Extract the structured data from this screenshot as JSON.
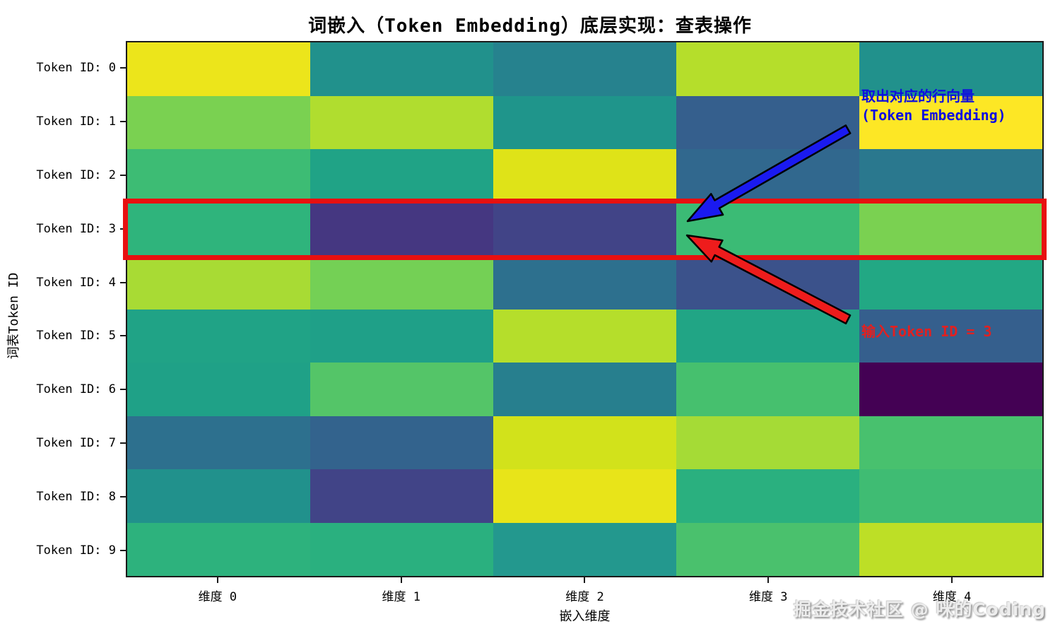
{
  "title": "词嵌入（Token Embedding）底层实现：查表操作",
  "watermark": "掘金技术社区 @ 咪的Coding",
  "annotations": {
    "blue_line1": "取出对应的行向量",
    "blue_line2": "(Token Embedding)",
    "blue_color": "#0d0de0",
    "red_text": "输入Token ID = 3",
    "red_color": "#e22020",
    "arrow_blue_color": "#1a1af0",
    "arrow_red_color": "#ee1c1c",
    "highlight_color": "#e81010"
  },
  "chart_data": {
    "type": "heatmap",
    "title": "词嵌入（Token Embedding）底层实现：查表操作",
    "xlabel": "嵌入维度",
    "ylabel": "词表Token ID",
    "colormap": "viridis",
    "legend": "none",
    "grid": false,
    "highlighted_row": 3,
    "col_labels": [
      "维度 0",
      "维度 1",
      "维度 2",
      "维度 3",
      "维度 4"
    ],
    "row_labels": [
      "Token ID: 0",
      "Token ID: 1",
      "Token ID: 2",
      "Token ID: 3",
      "Token ID: 4",
      "Token ID: 5",
      "Token ID: 6",
      "Token ID: 7",
      "Token ID: 8",
      "Token ID: 9"
    ],
    "cell_colors": [
      [
        "#ece51b",
        "#21918c",
        "#26828e",
        "#b5de2b",
        "#21918c"
      ],
      [
        "#7ad151",
        "#b0dd2f",
        "#1f958b",
        "#355f8d",
        "#fde725"
      ],
      [
        "#3dbc74",
        "#20a386",
        "#dfe318",
        "#31688e",
        "#2a788e"
      ],
      [
        "#2fb47c",
        "#453781",
        "#414487",
        "#3bbb75",
        "#7ad151"
      ],
      [
        "#a8db34",
        "#74d055",
        "#2d708e",
        "#3b528b",
        "#22a884"
      ],
      [
        "#20a386",
        "#1fa088",
        "#b5de2b",
        "#21a585",
        "#355f8d"
      ],
      [
        "#1fa187",
        "#54c568",
        "#277f8e",
        "#46c06e",
        "#440154"
      ],
      [
        "#2d708e",
        "#33638d",
        "#d2e21b",
        "#a5db36",
        "#48c16e"
      ],
      [
        "#21918c",
        "#414487",
        "#e8e419",
        "#2ab07f",
        "#3fbc73"
      ],
      [
        "#2db27d",
        "#2ab07f",
        "#23988e",
        "#4ac16d",
        "#bddf26"
      ]
    ],
    "values_norm_estimated": [
      [
        0.93,
        0.5,
        0.45,
        0.81,
        0.5
      ],
      [
        0.77,
        0.8,
        0.52,
        0.28,
        1.0
      ],
      [
        0.67,
        0.57,
        0.9,
        0.32,
        0.4
      ],
      [
        0.64,
        0.12,
        0.18,
        0.66,
        0.77
      ],
      [
        0.83,
        0.75,
        0.37,
        0.24,
        0.6
      ],
      [
        0.57,
        0.58,
        0.81,
        0.58,
        0.28
      ],
      [
        0.59,
        0.71,
        0.43,
        0.69,
        0.0
      ],
      [
        0.37,
        0.31,
        0.89,
        0.83,
        0.69
      ],
      [
        0.5,
        0.18,
        0.92,
        0.62,
        0.67
      ],
      [
        0.63,
        0.62,
        0.54,
        0.7,
        0.8
      ]
    ]
  }
}
